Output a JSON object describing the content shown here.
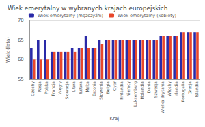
{
  "chart_data": {
    "type": "bar",
    "title": "Wiek emerytalny w wybranych krajach europejskich",
    "x_label": "Kraj",
    "y_label": "Wiek (lata)",
    "categories": [
      "Czechy",
      "Rosja",
      "Polska",
      "Francja",
      "Węgry",
      "Słowacja",
      "Litwa",
      "Łotwa",
      "Malta",
      "Estonia",
      "Słowenia",
      "Belgia",
      "Cypr",
      "Finlandia",
      "Niemcy",
      "Luksemburg",
      "Holandia",
      "Dania",
      "Szwecja",
      "Wielka Brytania",
      "Włochy",
      "Irlandia",
      "Portugalia",
      "Grecja",
      "Islandia"
    ],
    "series": [
      {
        "name": "Wiek emerytalny (mężczyźni)",
        "color": "#2a2aa8",
        "values": [
          63,
          65,
          65,
          62,
          62,
          62,
          63,
          63,
          66,
          63,
          65,
          65,
          65,
          65,
          65,
          65,
          65,
          65,
          65,
          66,
          66,
          66,
          67,
          67,
          67
        ]
      },
      {
        "name": "Wiek emerytalny (kobiety)",
        "color": "#e8472b",
        "values": [
          60,
          60,
          60,
          62,
          62,
          62,
          62,
          63,
          63,
          63,
          64,
          65,
          65,
          65,
          65,
          65,
          65,
          65,
          65,
          66,
          66,
          66,
          67,
          67,
          67
        ]
      }
    ],
    "ylim": [
      55,
      70
    ],
    "yticks": [
      55,
      60,
      65,
      70
    ],
    "grid": true,
    "legend": "top"
  }
}
